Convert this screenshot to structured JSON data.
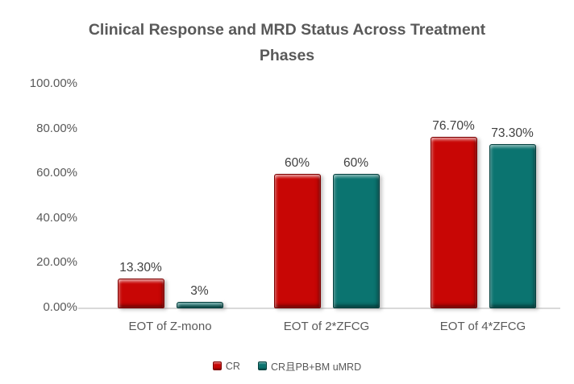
{
  "chart_data": {
    "type": "bar",
    "title": "Clinical Response and MRD Status Across Treatment Phases",
    "categories": [
      "EOT of Z-mono",
      "EOT of 2*ZFCG",
      "EOT of 4*ZFCG"
    ],
    "series": [
      {
        "name": "CR",
        "color": "#C80605",
        "values": [
          13.3,
          60,
          76.7
        ],
        "labels": [
          "13.30%",
          "60%",
          "76.70%"
        ]
      },
      {
        "name": "CR且PB+BM uMRD",
        "color": "#0B7470",
        "values": [
          3,
          60,
          73.3
        ],
        "labels": [
          "3%",
          "60%",
          "73.30%"
        ]
      }
    ],
    "y_axis": {
      "ticks": [
        "100.00%",
        "80.00%",
        "60.00%",
        "40.00%",
        "20.00%",
        "0.00%"
      ],
      "min": 0,
      "max": 100,
      "unit": "%"
    },
    "grid": false,
    "legend_position": "bottom",
    "colors": {
      "title_text": "#595959",
      "axis_text": "#595959",
      "data_label_text": "#404040",
      "axis_line": "#D9D9D9",
      "background": "#FFFFFF"
    }
  }
}
